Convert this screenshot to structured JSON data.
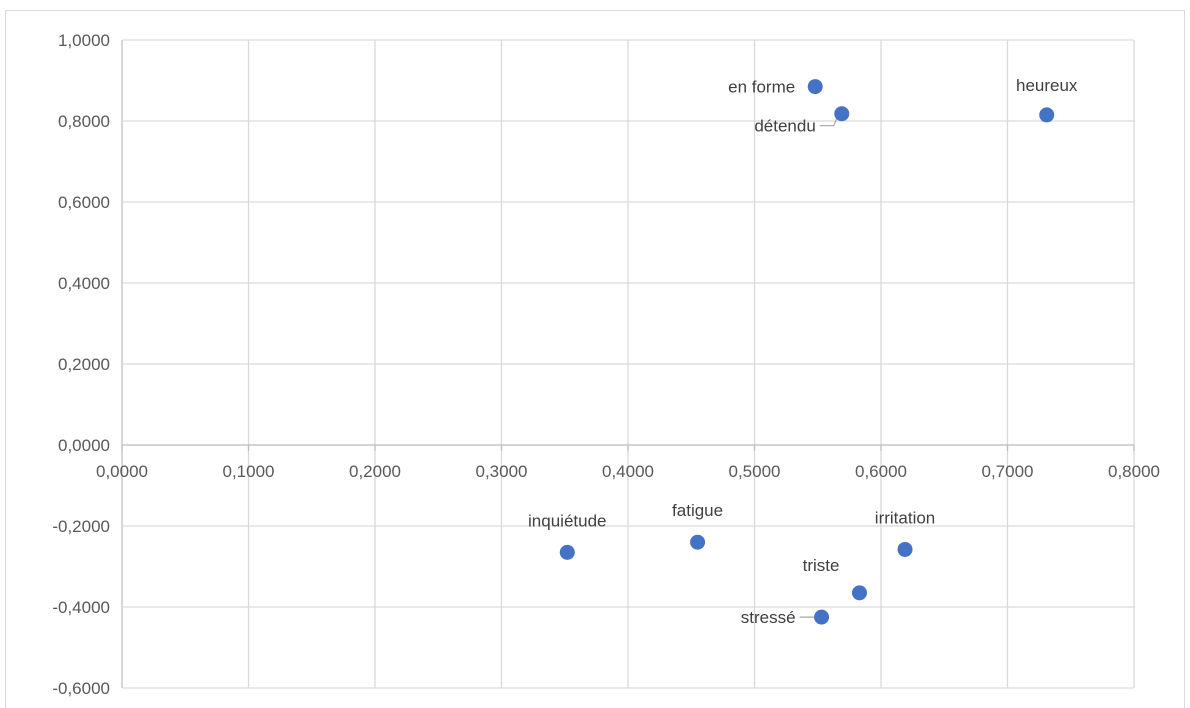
{
  "chart_data": {
    "type": "scatter",
    "title": "",
    "xlabel": "",
    "ylabel": "",
    "xlim": [
      0,
      0.8
    ],
    "ylim": [
      -0.6,
      1.0
    ],
    "x_ticks": [
      "0,0000",
      "0,1000",
      "0,2000",
      "0,3000",
      "0,4000",
      "0,5000",
      "0,6000",
      "0,7000",
      "0,8000"
    ],
    "y_ticks": [
      "1,0000",
      "0,8000",
      "0,6000",
      "0,4000",
      "0,2000",
      "0,0000",
      "-0,2000",
      "-0,4000",
      "-0,6000"
    ],
    "grid": true,
    "marker_color": "#4472C4",
    "points": [
      {
        "label": "en forme",
        "x": 0.548,
        "y": 0.885
      },
      {
        "label": "détendu",
        "x": 0.569,
        "y": 0.818
      },
      {
        "label": "heureux",
        "x": 0.731,
        "y": 0.815
      },
      {
        "label": "inquiétude",
        "x": 0.352,
        "y": -0.265
      },
      {
        "label": "fatigue",
        "x": 0.455,
        "y": -0.24
      },
      {
        "label": "irritation",
        "x": 0.619,
        "y": -0.258
      },
      {
        "label": "triste",
        "x": 0.583,
        "y": -0.365
      },
      {
        "label": "stressé",
        "x": 0.553,
        "y": -0.425
      }
    ]
  }
}
